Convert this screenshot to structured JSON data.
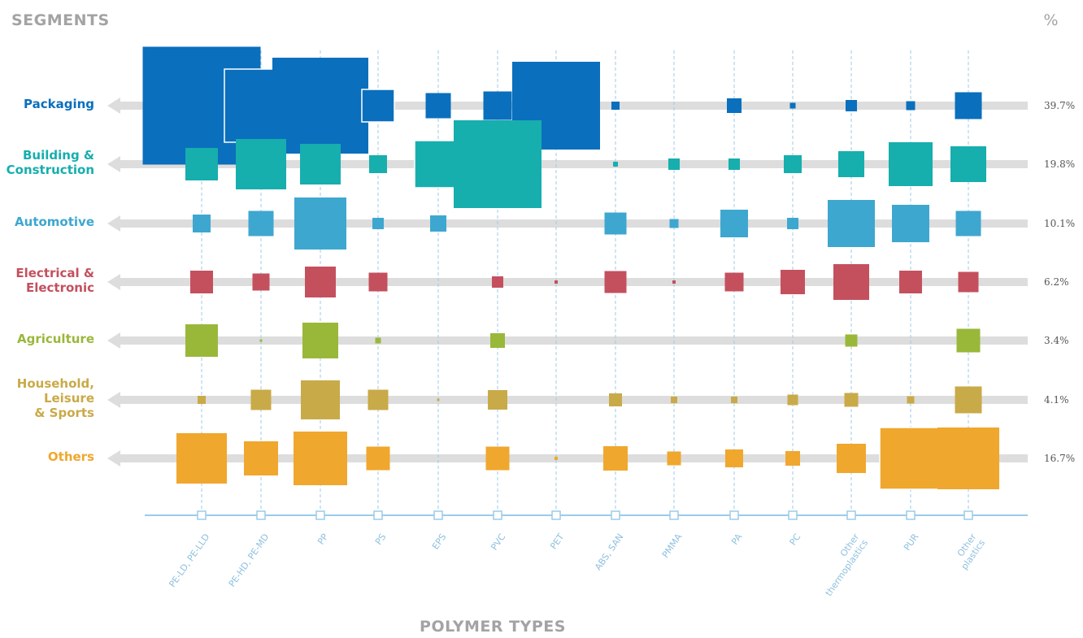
{
  "chart_data": {
    "type": "bubble-matrix",
    "title": "SEGMENTS",
    "right_title": "%",
    "xlabel": "POLYMER TYPES",
    "categories": [
      "PE-LD, PE-LLD",
      "PE-HD, PE-MD",
      "PP",
      "PS",
      "EPS",
      "PVC",
      "PET",
      "ABS, SAN",
      "PMMA",
      "PA",
      "PC",
      "Other\nthermoplastics",
      "PUR",
      "Other\nplastics"
    ],
    "rows": [
      {
        "name": "Packaging",
        "label": "Packaging",
        "percent": "39.7%",
        "color": "#0a6fbd",
        "values": [
          145,
          90,
          118,
          40,
          31,
          35,
          108,
          10,
          0,
          18,
          7,
          14,
          11,
          33
        ],
        "outlined": [
          false,
          true,
          false,
          true,
          false,
          false,
          false,
          false,
          false,
          false,
          false,
          false,
          false,
          false
        ]
      },
      {
        "name": "Building & Construction",
        "label": "Building &\nConstruction",
        "percent": "19.8%",
        "color": "#17aeae",
        "values": [
          40,
          62,
          50,
          22,
          58,
          108,
          0,
          6,
          14,
          14,
          22,
          32,
          54,
          44
        ],
        "outlined": [
          false,
          false,
          false,
          false,
          true,
          false,
          false,
          false,
          false,
          false,
          false,
          false,
          false,
          false
        ]
      },
      {
        "name": "Automotive",
        "label": "Automotive",
        "percent": "10.1%",
        "color": "#3ea7cf",
        "values": [
          22,
          31,
          64,
          14,
          20,
          0,
          0,
          27,
          11,
          34,
          14,
          58,
          46,
          31
        ],
        "outlined": [
          false,
          false,
          false,
          false,
          false,
          false,
          false,
          false,
          false,
          false,
          false,
          false,
          false,
          false
        ]
      },
      {
        "name": "Electrical & Electronic",
        "label": "Electrical &\nElectronic",
        "percent": "6.2%",
        "color": "#c4505e",
        "values": [
          28,
          21,
          38,
          23,
          0,
          14,
          4,
          27,
          4,
          23,
          30,
          44,
          28,
          25
        ],
        "outlined": [
          false,
          false,
          false,
          false,
          false,
          false,
          false,
          false,
          false,
          false,
          false,
          false,
          false,
          false
        ]
      },
      {
        "name": "Agriculture",
        "label": "Agriculture",
        "percent": "3.4%",
        "color": "#99b83a",
        "values": [
          40,
          3,
          44,
          7,
          0,
          18,
          0,
          0,
          0,
          0,
          0,
          15,
          0,
          29
        ],
        "outlined": [
          false,
          false,
          false,
          false,
          false,
          false,
          false,
          false,
          false,
          false,
          false,
          false,
          false,
          false
        ]
      },
      {
        "name": "Household, Leisure & Sports",
        "label": "Household,\nLeisure\n& Sports",
        "percent": "4.1%",
        "color": "#c9aa48",
        "values": [
          10,
          25,
          48,
          25,
          3,
          24,
          0,
          16,
          8,
          8,
          13,
          17,
          9,
          33
        ],
        "outlined": [
          false,
          false,
          false,
          false,
          false,
          false,
          false,
          false,
          false,
          false,
          false,
          false,
          false,
          false
        ]
      },
      {
        "name": "Others",
        "label": "Others",
        "percent": "16.7%",
        "color": "#f0a72e",
        "values": [
          62,
          42,
          66,
          29,
          0,
          29,
          4,
          30,
          17,
          22,
          18,
          36,
          76,
          76
        ],
        "outlined": [
          false,
          false,
          false,
          false,
          false,
          false,
          false,
          false,
          false,
          false,
          false,
          false,
          true,
          false
        ]
      }
    ],
    "row_track_color": "#dddddd",
    "grid_color": "#9ccbe8",
    "grid": true
  }
}
